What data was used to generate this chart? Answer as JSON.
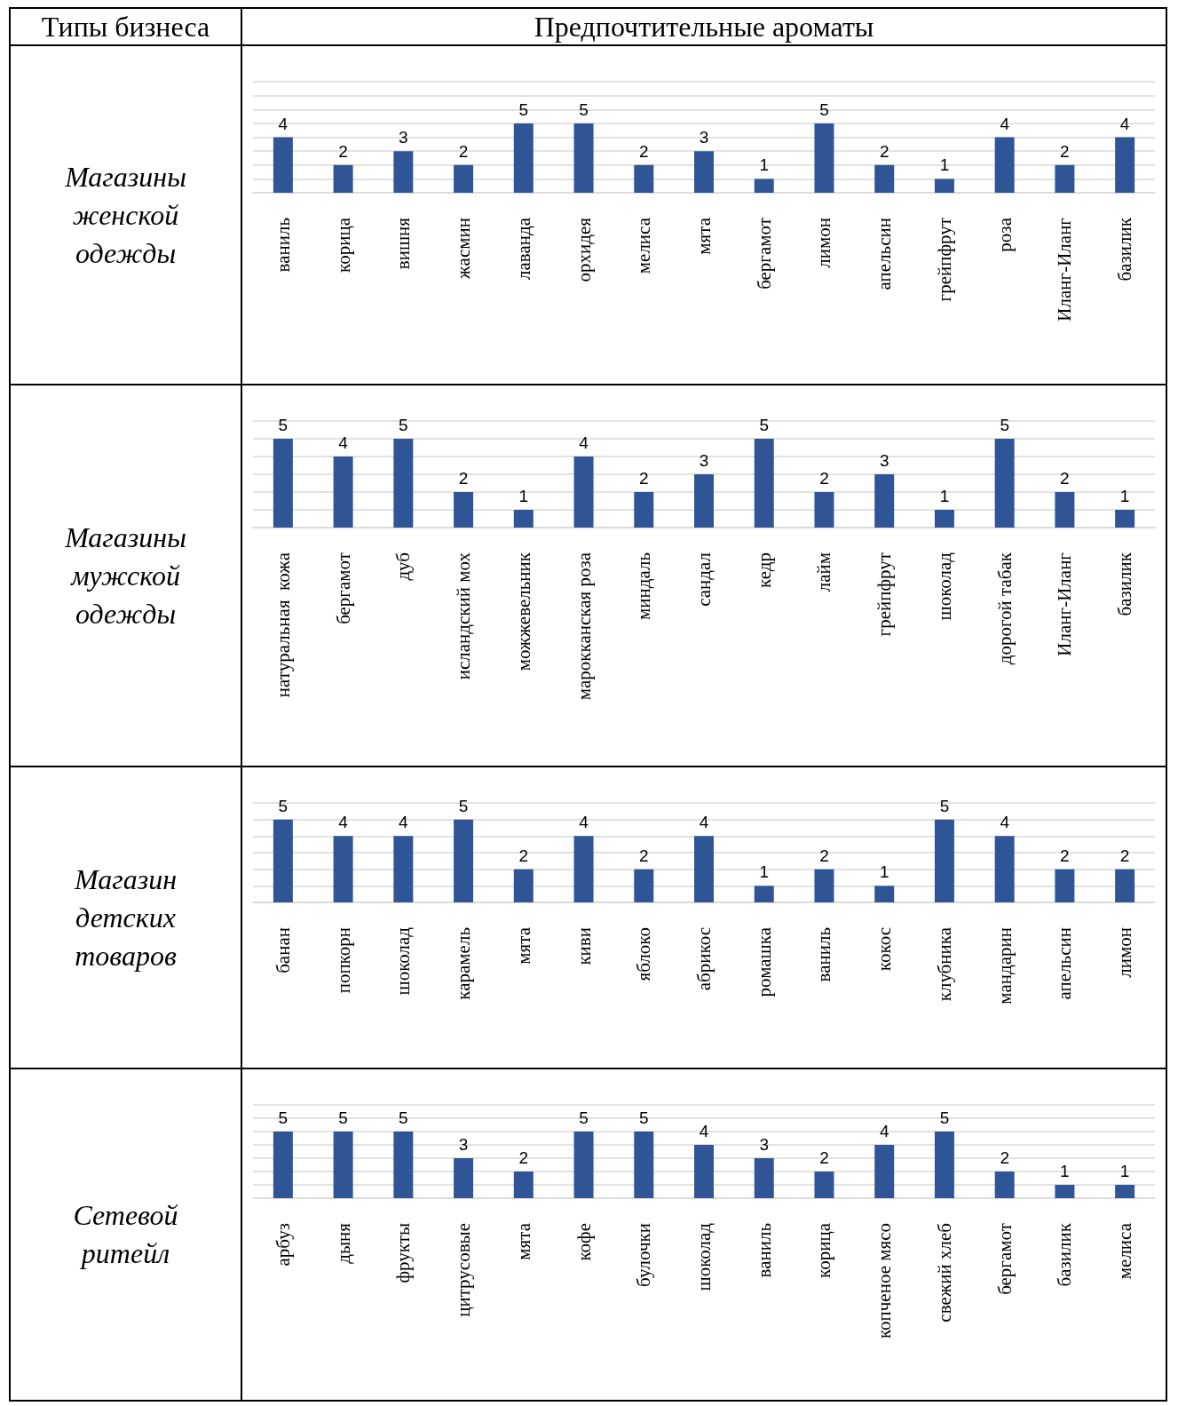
{
  "chart_data": [
    {
      "type": "bar",
      "title": "Магазины женской одежды",
      "annotations": [
        "Типы бизнеса",
        "Предпочтительные ароматы"
      ],
      "categories": [
        "ваниль",
        "корица",
        "вишня",
        "жасмин",
        "лаванда",
        "орхидея",
        "мелиса",
        "мята",
        "бергамот",
        "лимон",
        "апельсин",
        "грейпфрут",
        "роза",
        "Иланг-Иланг",
        "базилик"
      ],
      "values": [
        4,
        2,
        3,
        2,
        5,
        5,
        2,
        3,
        1,
        5,
        2,
        1,
        4,
        2,
        4
      ],
      "color": "#2f5597",
      "data_labels": true,
      "grid": "y",
      "tick_labels": "x",
      "ylim": [
        0,
        8
      ],
      "yticks": [
        {
          "value": 0,
          "label": null
        },
        {
          "value": 1,
          "label": null
        },
        {
          "value": 2,
          "label": null
        },
        {
          "value": 3,
          "label": null
        },
        {
          "value": 4,
          "label": null
        },
        {
          "value": 5,
          "label": null
        },
        {
          "value": 6,
          "label": null
        },
        {
          "value": 7,
          "label": null
        },
        {
          "value": 8,
          "label": null
        }
      ]
    },
    {
      "type": "bar",
      "title": "Магазины мужской одежды",
      "categories": [
        "натуральная  кожа",
        "бергамот",
        "дуб",
        "исландский мох",
        "можжевельник",
        "марокканская роза",
        "миндаль",
        "сандал",
        "кедр",
        "лайм",
        "грейпфрут",
        "шоколад",
        "дорогой табак",
        "Иланг-Иланг",
        "базилик"
      ],
      "values": [
        5,
        4,
        5,
        2,
        1,
        4,
        2,
        3,
        5,
        2,
        3,
        1,
        5,
        2,
        1
      ],
      "color": "#2f5597",
      "data_labels": true,
      "grid": "y",
      "tick_labels": "x",
      "ylim": [
        0,
        6
      ],
      "yticks": [
        {
          "value": 0,
          "label": null
        },
        {
          "value": 1,
          "label": null
        },
        {
          "value": 2,
          "label": null
        },
        {
          "value": 3,
          "label": null
        },
        {
          "value": 4,
          "label": null
        },
        {
          "value": 5,
          "label": null
        },
        {
          "value": 6,
          "label": null
        }
      ]
    },
    {
      "type": "bar",
      "title": "Магазин детских товаров",
      "categories": [
        "банан",
        "попкорн",
        "шоколад",
        "карамель",
        "мята",
        "киви",
        "яблоко",
        "абрикос",
        "ромашка",
        "ваниль",
        "кокос",
        "клубника",
        "мандарин",
        "апельсин",
        "лимон"
      ],
      "values": [
        5,
        4,
        4,
        5,
        2,
        4,
        2,
        4,
        1,
        2,
        1,
        5,
        4,
        2,
        2
      ],
      "color": "#2f5597",
      "data_labels": true,
      "grid": "y",
      "tick_labels": "x",
      "ylim": [
        0,
        6
      ],
      "yticks": [
        {
          "value": 0,
          "label": null
        },
        {
          "value": 1,
          "label": null
        },
        {
          "value": 2,
          "label": null
        },
        {
          "value": 3,
          "label": null
        },
        {
          "value": 4,
          "label": null
        },
        {
          "value": 5,
          "label": null
        },
        {
          "value": 6,
          "label": null
        }
      ]
    },
    {
      "type": "bar",
      "title": "Сетевой ритейл",
      "categories": [
        "арбуз",
        "дыня",
        "фрукты",
        "цитрусовые",
        "мята",
        "кофе",
        "булочки",
        "шоколад",
        "ваниль",
        "корица",
        "копченое мясо",
        "свежий хлеб",
        "бергамот",
        "базилик",
        "мелиса"
      ],
      "values": [
        5,
        5,
        5,
        3,
        2,
        5,
        5,
        4,
        3,
        2,
        4,
        5,
        2,
        1,
        1
      ],
      "color": "#2f5597",
      "data_labels": true,
      "grid": "y",
      "tick_labels": "x",
      "ylim": [
        0,
        7
      ],
      "yticks": [
        {
          "value": 0,
          "label": null
        },
        {
          "value": 1,
          "label": null
        },
        {
          "value": 2,
          "label": null
        },
        {
          "value": 3,
          "label": null
        },
        {
          "value": 4,
          "label": null
        },
        {
          "value": 5,
          "label": null
        },
        {
          "value": 6,
          "label": null
        },
        {
          "value": 7,
          "label": null
        }
      ]
    }
  ]
}
